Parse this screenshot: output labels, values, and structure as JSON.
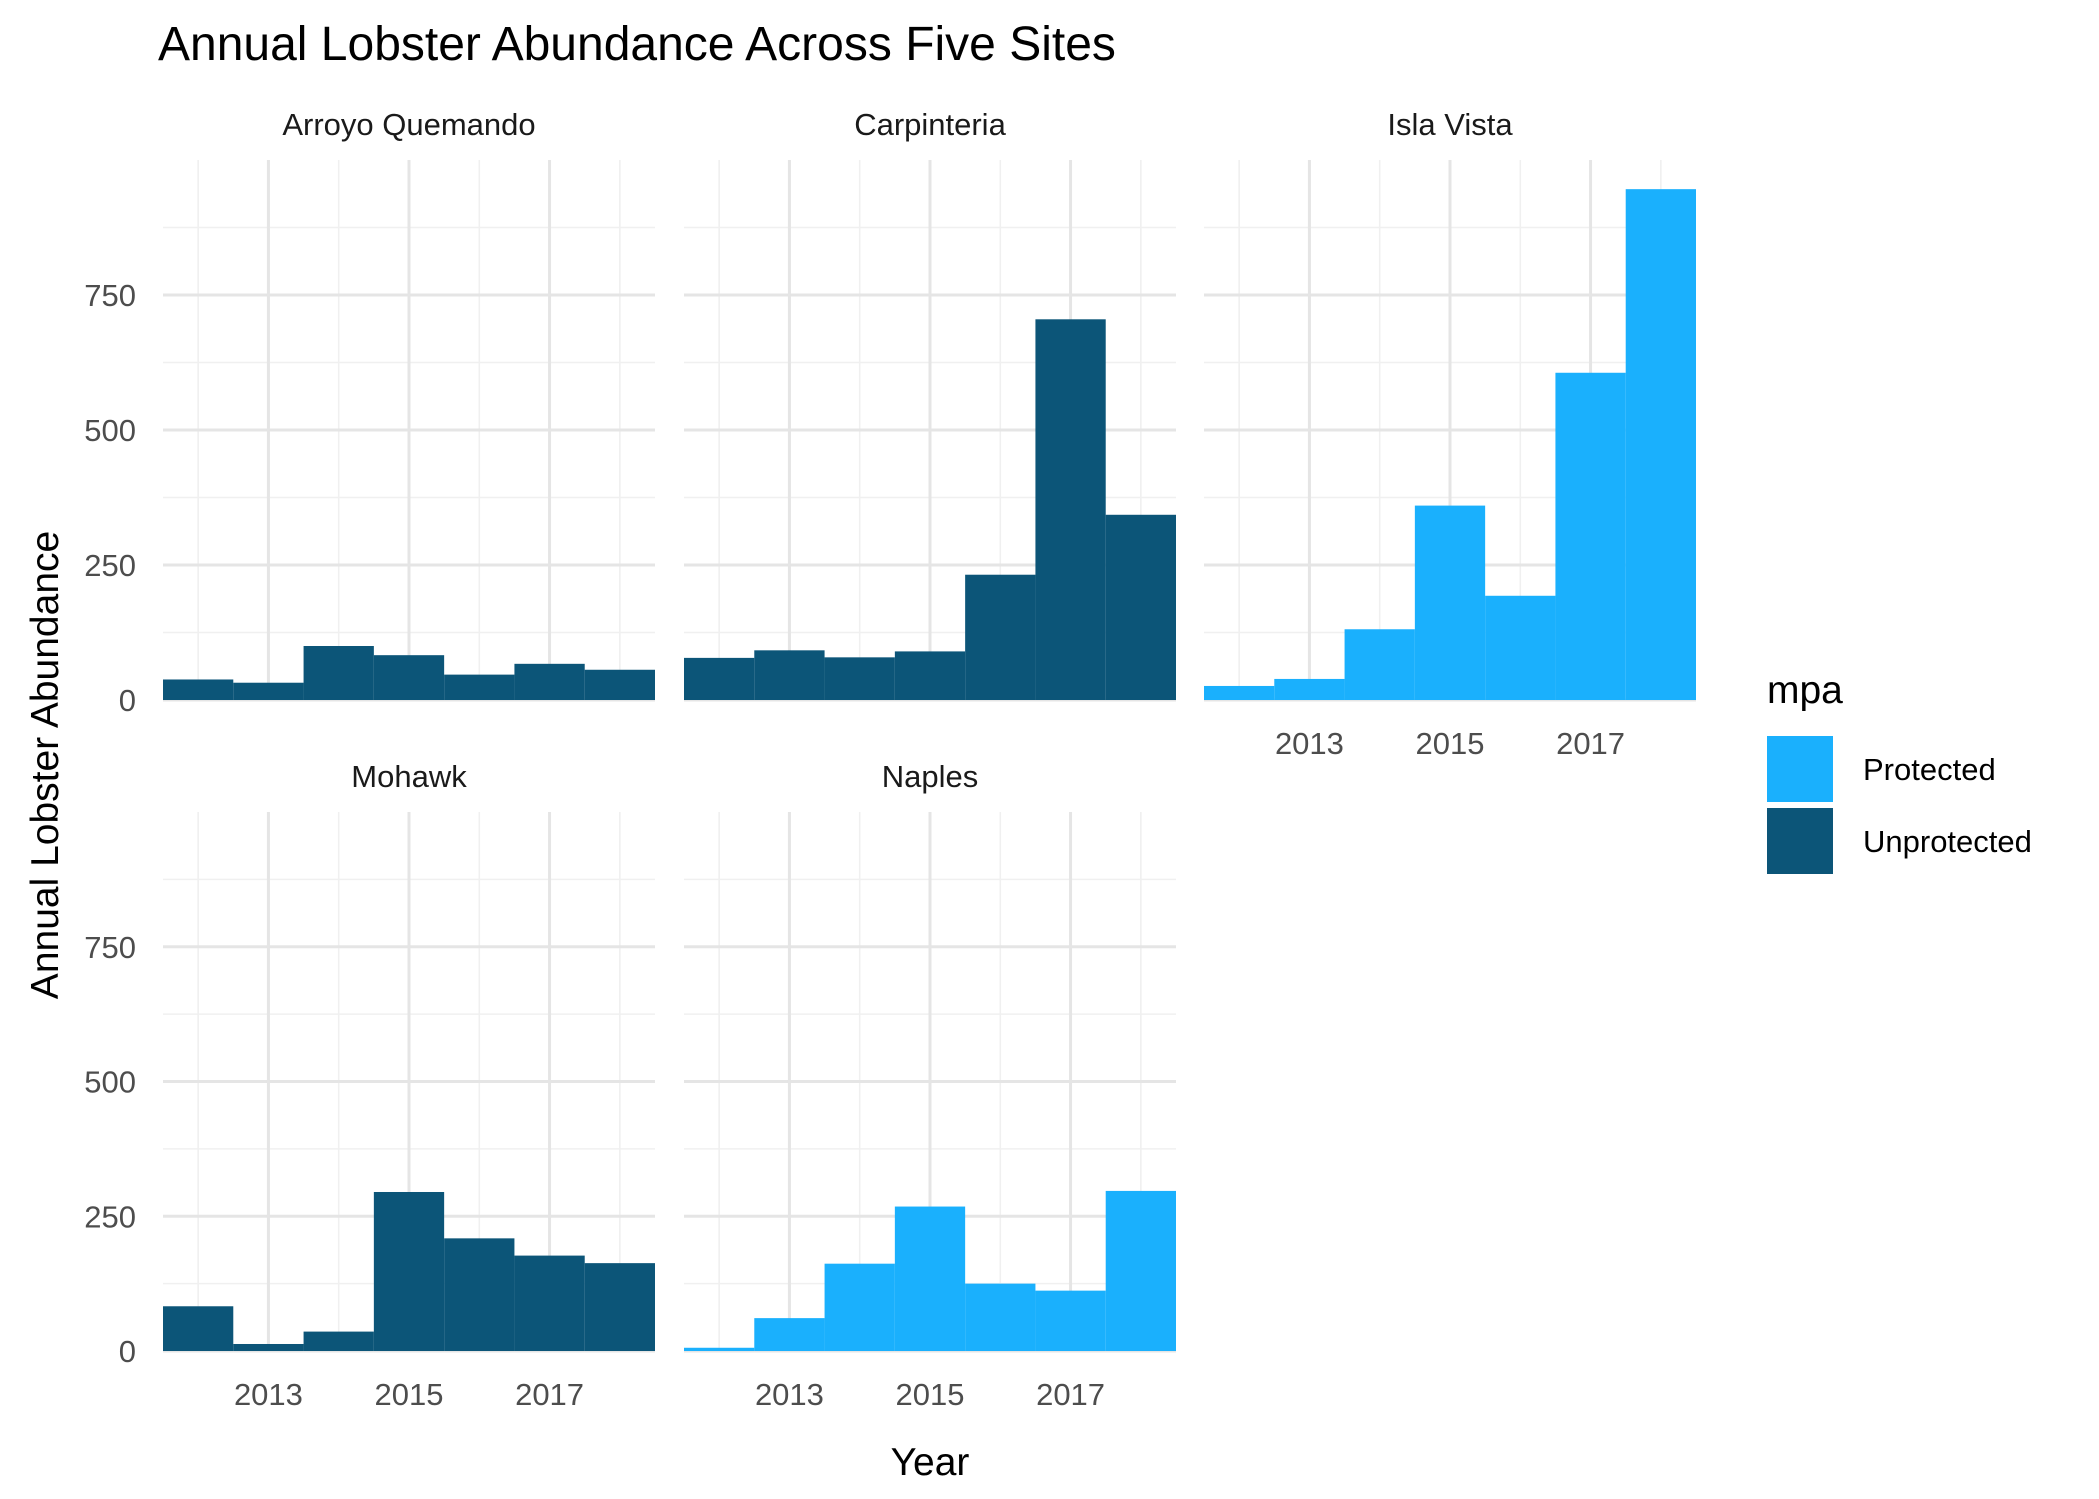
{
  "chart_data": {
    "type": "bar",
    "title": "Annual Lobster Abundance Across Five Sites",
    "xlabel": "Year",
    "ylabel": "Annual Lobster Abundance",
    "x_ticks": [
      "2013",
      "2015",
      "2017"
    ],
    "y_ticks": [
      "0",
      "250",
      "500",
      "750"
    ],
    "ylim": [
      0,
      1000
    ],
    "xlim": [
      2011.5,
      2018.5
    ],
    "grid": true,
    "legend_title": "mpa",
    "legend_position": "right",
    "legend": [
      {
        "label": "Protected",
        "color": "#1AB0FD"
      },
      {
        "label": "Unprotected",
        "color": "#0C5578"
      }
    ],
    "panels": [
      {
        "site": "Arroyo Quemando",
        "mpa": "Unprotected",
        "years": [
          2012,
          2013,
          2014,
          2015,
          2016,
          2017,
          2018
        ],
        "values": [
          38,
          32,
          100,
          83,
          47,
          67,
          56
        ]
      },
      {
        "site": "Carpinteria",
        "mpa": "Unprotected",
        "years": [
          2012,
          2013,
          2014,
          2015,
          2016,
          2017,
          2018
        ],
        "values": [
          78,
          92,
          79,
          90,
          232,
          705,
          343
        ]
      },
      {
        "site": "Isla Vista",
        "mpa": "Protected",
        "years": [
          2012,
          2013,
          2014,
          2015,
          2016,
          2017,
          2018
        ],
        "values": [
          26,
          39,
          131,
          360,
          193,
          606,
          946
        ]
      },
      {
        "site": "Mohawk",
        "mpa": "Unprotected",
        "years": [
          2012,
          2013,
          2014,
          2015,
          2016,
          2017,
          2018
        ],
        "values": [
          83,
          13,
          36,
          295,
          209,
          177,
          163
        ]
      },
      {
        "site": "Naples",
        "mpa": "Protected",
        "years": [
          2012,
          2013,
          2014,
          2015,
          2016,
          2017,
          2018
        ],
        "values": [
          6,
          61,
          162,
          268,
          125,
          112,
          297
        ]
      }
    ]
  }
}
